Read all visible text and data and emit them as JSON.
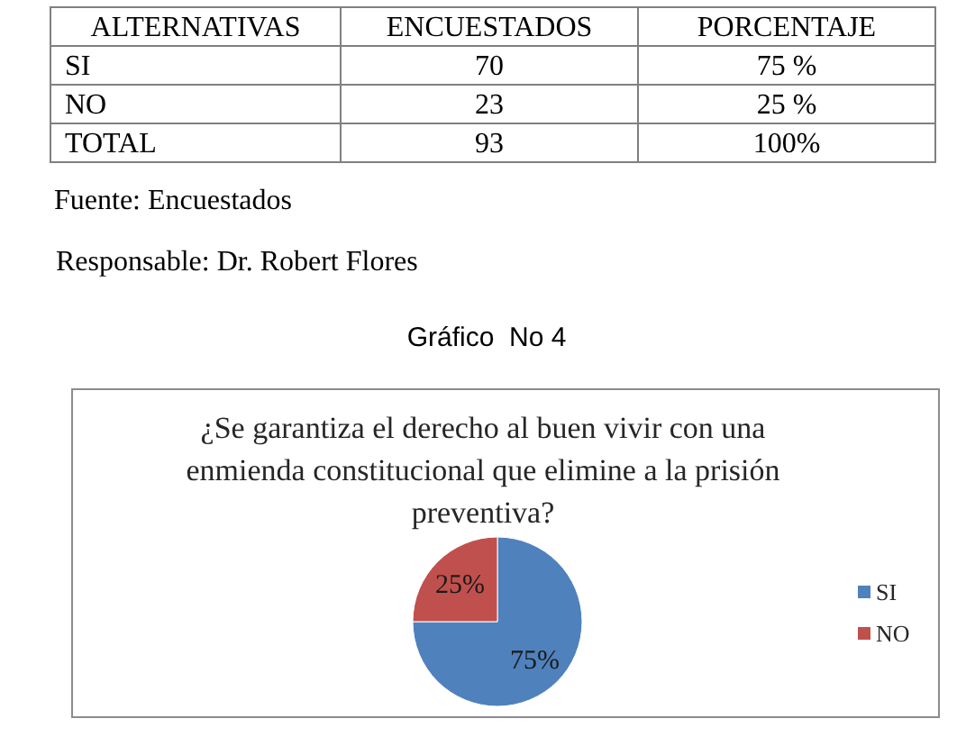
{
  "chart_data": [
    {
      "type": "other",
      "categories": [
        "ALTERNATIVAS",
        "ENCUESTADOS",
        "PORCENTAJE"
      ],
      "y_categories": [
        "SI",
        "NO",
        "TOTAL"
      ],
      "cell_labels": [
        [
          "70",
          "75 %"
        ],
        [
          "23",
          "25 %"
        ],
        [
          "93",
          "100%"
        ]
      ],
      "annotations": [
        "Fuente: Encuestados",
        "Responsable: Dr. Robert Flores"
      ]
    },
    {
      "type": "pie",
      "title": "¿Se garantiza el derecho al buen vivir con una enmienda constitucional que elimine a la prisión preventiva?",
      "categories": [
        "SI",
        "NO"
      ],
      "values": [
        75,
        25
      ],
      "colors": [
        "#4f81bd",
        "#c0504d"
      ],
      "value_labels": [
        "75%",
        "25%"
      ],
      "legend": "right",
      "annotations": [
        "Gráfico  No 4"
      ]
    }
  ]
}
